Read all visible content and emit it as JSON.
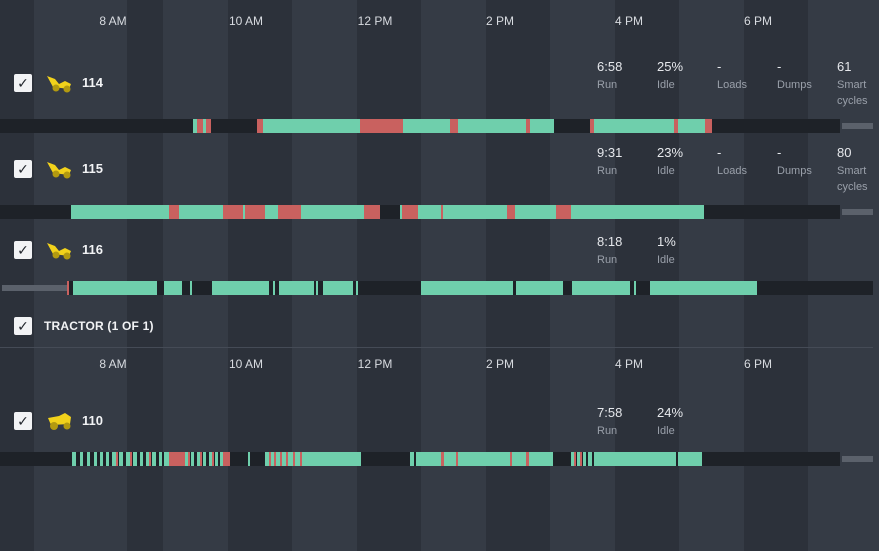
{
  "colors": {
    "run": "#6fcfac",
    "idle": "#c9615f",
    "track": "#1e2228",
    "equipment_icon": "#f2d21b"
  },
  "time_axis": [
    "8 AM",
    "10 AM",
    "12 PM",
    "2 PM",
    "4 PM",
    "6 PM"
  ],
  "units_top": [
    {
      "id": "114",
      "checked": true,
      "icon": "wheel-loader-icon",
      "run": "6:58",
      "run_label": "Run",
      "idle": "25%",
      "idle_label": "Idle",
      "loads": "-",
      "loads_label": "Loads",
      "dumps": "-",
      "dumps_label": "Dumps",
      "smart": "61",
      "smart_label_1": "Smart",
      "smart_label_2": "cycles"
    },
    {
      "id": "115",
      "checked": true,
      "icon": "wheel-loader-icon",
      "run": "9:31",
      "run_label": "Run",
      "idle": "23%",
      "idle_label": "Idle",
      "loads": "-",
      "loads_label": "Loads",
      "dumps": "-",
      "dumps_label": "Dumps",
      "smart": "80",
      "smart_label_1": "Smart",
      "smart_label_2": "cycles"
    },
    {
      "id": "116",
      "checked": true,
      "icon": "wheel-loader-icon",
      "run": "8:18",
      "run_label": "Run",
      "idle": "1%",
      "idle_label": "Idle"
    }
  ],
  "group": {
    "title": "TRACTOR (1 OF 1)",
    "checked": true
  },
  "units_bottom": [
    {
      "id": "110",
      "checked": true,
      "icon": "tractor-icon",
      "run": "7:58",
      "run_label": "Run",
      "idle": "24%",
      "idle_label": "Idle"
    }
  ]
}
